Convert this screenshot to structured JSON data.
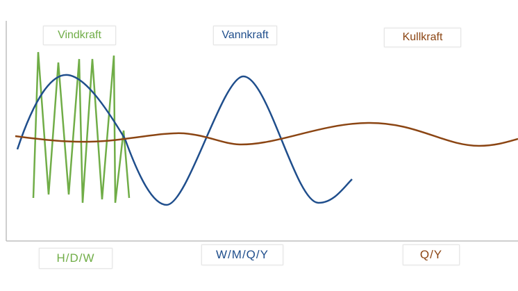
{
  "labels": {
    "wind": "Vindkraft",
    "hydro": "Vannkraft",
    "coal": "Kullkraft"
  },
  "timescales": {
    "wind": "H/D/W",
    "hydro": "W/M/Q/Y",
    "coal": "Q/Y"
  },
  "colors": {
    "wind": "#70ad47",
    "hydro": "#1f4e8c",
    "coal": "#8b4513",
    "axis": "#bfbfbf"
  }
}
